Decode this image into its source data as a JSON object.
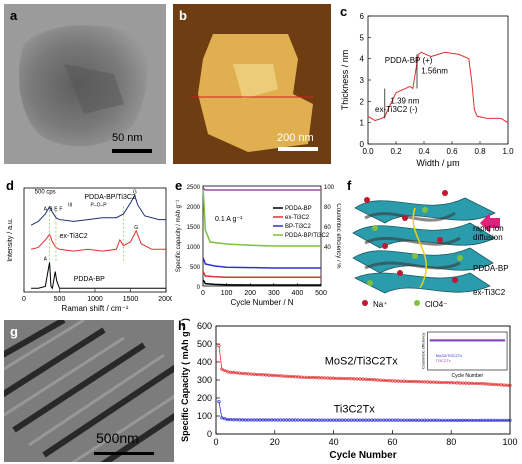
{
  "panels": {
    "a": {
      "label": "a",
      "scale": "50 nm"
    },
    "b": {
      "label": "b",
      "scale": "200 nm"
    },
    "c": {
      "label": "c",
      "legend_upper": "PDDA-BP (+)",
      "legend_lower": "ex-Ti3C2 (-)",
      "step_upper": "1.56nm",
      "step_lower": "1.39 nm"
    },
    "d": {
      "label": "d",
      "cps": "500 cps",
      "trace_top": "PDDA-BP/Ti3C2",
      "trace_mid": "ex-Ti3C2",
      "trace_bot": "PDDA-BP",
      "peak_labels": [
        "III",
        "P–O–P",
        "G",
        "A",
        "B",
        "E",
        "F",
        "G",
        "A"
      ]
    },
    "e": {
      "label": "e",
      "current": "0.1 A g⁻¹"
    },
    "f": {
      "label": "f",
      "rapid": [
        "rapid ion",
        "diffusion"
      ],
      "material_upper": "PDDA-BP",
      "material_lower": "ex-Ti3C2",
      "na": "Na⁺",
      "clo4": "ClO4⁻"
    },
    "g": {
      "label": "g",
      "scale": "500nm"
    },
    "h": {
      "label": "h",
      "series_upper": "MoS2/Ti3C2Tx",
      "series_lower": "Ti3C2Tx",
      "inset_ylabel": "Coulombic efficiency",
      "inset_xlabel": "Cycle Number",
      "inset_legend": [
        "MoS2/Ti3C2Tx",
        "Ti3C2Tx"
      ]
    }
  },
  "colors": {
    "pink": "#b0308a",
    "green": "#7dc142",
    "navy": "#1f2f6b",
    "purple": "#a349a4",
    "red": "#e03030",
    "blue": "#3030d0"
  },
  "chart_data": [
    {
      "id": "c",
      "type": "line",
      "xlabel": "Width / μm",
      "ylabel": "Thickness / nm",
      "xlim": [
        0,
        1.0
      ],
      "ylim": [
        0,
        6
      ],
      "xticks": [
        "0.0",
        "0.2",
        "0.4",
        "0.6",
        "0.8",
        "1.0"
      ],
      "yticks": [
        "0",
        "1",
        "2",
        "3",
        "4",
        "5",
        "6"
      ],
      "series": [
        {
          "x": [
            0.0,
            0.05,
            0.1,
            0.12,
            0.2,
            0.3,
            0.32,
            0.36,
            0.38,
            0.45,
            0.55,
            0.65,
            0.72,
            0.74,
            0.76,
            0.78,
            0.85,
            0.95,
            1.0
          ],
          "values": [
            1.3,
            1.1,
            1.2,
            1.3,
            2.4,
            2.7,
            2.6,
            4.2,
            4.3,
            4.1,
            4.3,
            4.2,
            4.0,
            3.0,
            1.6,
            1.3,
            1.2,
            1.2,
            1.0
          ]
        }
      ]
    },
    {
      "id": "d",
      "type": "line",
      "xlabel": "Raman shift / cm⁻¹",
      "ylabel": "Intensity / a.u.",
      "xlim": [
        0,
        2000
      ],
      "xticks": [
        "0",
        "500",
        "1000",
        "1500",
        "2000"
      ],
      "series": [
        {
          "name": "PDDA-BP/Ti3C2",
          "x": [
            100,
            200,
            300,
            360,
            400,
            450,
            500,
            700,
            900,
            1100,
            1300,
            1400,
            1500,
            1560,
            1600,
            1700,
            1900,
            2000
          ],
          "values": [
            3.6,
            3.8,
            4.2,
            4.6,
            4.3,
            4.0,
            3.9,
            3.8,
            3.9,
            4.0,
            4.0,
            4.2,
            4.8,
            5.2,
            4.7,
            4.1,
            3.9,
            3.9
          ]
        },
        {
          "name": "ex-Ti3C2",
          "x": [
            100,
            200,
            300,
            360,
            400,
            450,
            500,
            700,
            900,
            1100,
            1300,
            1350,
            1400,
            1500,
            1580,
            1650,
            1800,
            2000
          ],
          "values": [
            2.3,
            2.4,
            2.8,
            3.1,
            2.7,
            2.4,
            2.3,
            2.2,
            2.3,
            2.2,
            2.3,
            2.8,
            2.5,
            2.7,
            3.3,
            2.6,
            2.3,
            2.3
          ]
        },
        {
          "name": "PDDA-BP",
          "x": [
            100,
            200,
            300,
            360,
            380,
            400,
            440,
            460,
            500,
            700,
            1000,
            1500,
            2000
          ],
          "values": [
            0.2,
            0.2,
            0.3,
            1.6,
            0.3,
            0.2,
            1.1,
            0.6,
            0.2,
            0.2,
            0.2,
            0.2,
            0.2
          ]
        }
      ]
    },
    {
      "id": "e",
      "type": "line",
      "xlabel": "Cycle Number / N",
      "ylabel": "Specific capacity / mAh g⁻¹",
      "y2label": "Coulombic efficiency / %",
      "xlim": [
        0,
        500
      ],
      "ylim": [
        0,
        2500
      ],
      "y2lim": [
        0,
        100
      ],
      "xticks": [
        "0",
        "100",
        "200",
        "300",
        "400",
        "500"
      ],
      "yticks": [
        "0",
        "500",
        "1000",
        "1500",
        "2000",
        "2500"
      ],
      "y2ticks": [
        "40",
        "60",
        "80",
        "100"
      ],
      "series": [
        {
          "name": "PDDA-BP",
          "x": [
            1,
            10,
            50,
            100,
            200,
            300,
            400,
            500
          ],
          "values": [
            150,
            60,
            40,
            30,
            25,
            25,
            25,
            25
          ]
        },
        {
          "name": "ex-Ti3C2",
          "x": [
            1,
            10,
            50,
            100,
            200,
            300,
            400,
            500
          ],
          "values": [
            350,
            250,
            230,
            220,
            220,
            220,
            220,
            220
          ]
        },
        {
          "name": "BP-Ti3C2",
          "x": [
            1,
            10,
            50,
            100,
            200,
            300,
            400,
            500
          ],
          "values": [
            700,
            550,
            500,
            470,
            460,
            450,
            450,
            450
          ]
        },
        {
          "name": "PDDA-BP/Ti3C2",
          "x": [
            1,
            10,
            30,
            100,
            200,
            300,
            400,
            500
          ],
          "values": [
            2400,
            1400,
            1100,
            1050,
            1020,
            1000,
            1000,
            1000
          ]
        },
        {
          "name": "Coulombic efficiency",
          "x": [
            1,
            10,
            50,
            100,
            200,
            300,
            400,
            500
          ],
          "values": [
            2450,
            2400,
            2400,
            2400,
            2400,
            2400,
            2400,
            2400
          ]
        }
      ]
    },
    {
      "id": "h",
      "type": "line",
      "xlabel": "Cycle Number",
      "ylabel": "Specific Capacity ( mAh g⁻¹ )",
      "xlim": [
        0,
        100
      ],
      "ylim": [
        0,
        600
      ],
      "xticks": [
        "0",
        "20",
        "40",
        "60",
        "80",
        "100"
      ],
      "yticks": [
        "0",
        "100",
        "200",
        "300",
        "400",
        "500",
        "600"
      ],
      "series": [
        {
          "name": "MoS2/Ti3C2Tx",
          "x": [
            1,
            2,
            4,
            10,
            20,
            30,
            40,
            50,
            60,
            70,
            80,
            90,
            95,
            100
          ],
          "values": [
            490,
            360,
            345,
            335,
            325,
            315,
            310,
            305,
            295,
            290,
            285,
            280,
            275,
            270
          ]
        },
        {
          "name": "Ti3C2Tx",
          "x": [
            1,
            2,
            4,
            10,
            20,
            40,
            60,
            80,
            100
          ],
          "values": [
            180,
            90,
            80,
            78,
            78,
            77,
            77,
            76,
            76
          ]
        }
      ],
      "inset": {
        "xlim": [
          0,
          100
        ],
        "ylim": [
          0,
          100
        ],
        "xticks": [
          "0",
          "20",
          "40",
          "60",
          "80",
          "100"
        ],
        "yticks": [
          "0",
          "20",
          "40",
          "60",
          "80",
          "100"
        ]
      }
    }
  ]
}
